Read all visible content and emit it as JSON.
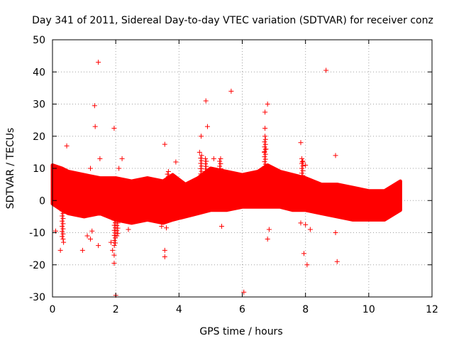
{
  "chart_data": {
    "type": "scatter",
    "title": "Day 341 of 2011, Sidereal Day-to-day VTEC variation (SDTVAR) for receiver conz",
    "xlabel": "GPS time / hours",
    "ylabel": "SDTVAR / TECUs",
    "xlim": [
      0,
      12
    ],
    "ylim": [
      -30,
      50
    ],
    "x_ticks": [
      "0",
      "2",
      "4",
      "6",
      "8",
      "10",
      "12"
    ],
    "y_ticks": [
      "-30",
      "-20",
      "-10",
      "0",
      "10",
      "20",
      "30",
      "40",
      "50"
    ],
    "grid": true,
    "marker": "+",
    "color": "#ff0000",
    "band": {
      "x": [
        0.0,
        0.3,
        0.5,
        1.0,
        1.5,
        2.0,
        2.5,
        3.0,
        3.5,
        3.8,
        4.2,
        4.6,
        5.0,
        5.5,
        6.0,
        6.5,
        6.8,
        7.2,
        7.6,
        8.0,
        8.5,
        9.0,
        9.5,
        10.0,
        10.5,
        11.0
      ],
      "upper": [
        11,
        10,
        9,
        8,
        7,
        7,
        6,
        7,
        6,
        8,
        5,
        7,
        10,
        9,
        8,
        9,
        11,
        9,
        8,
        7,
        5,
        5,
        4,
        3,
        3,
        6
      ],
      "lower": [
        -1,
        -3,
        -4,
        -5,
        -4,
        -6,
        -7,
        -6,
        -7,
        -6,
        -5,
        -4,
        -3,
        -3,
        -2,
        -2,
        -2,
        -2,
        -3,
        -3,
        -4,
        -5,
        -6,
        -6,
        -6,
        -3
      ]
    },
    "outliers": [
      {
        "x": 1.45,
        "y": 43
      },
      {
        "x": 8.65,
        "y": 40.5
      },
      {
        "x": 5.65,
        "y": 34
      },
      {
        "x": 4.85,
        "y": 31
      },
      {
        "x": 6.8,
        "y": 30
      },
      {
        "x": 1.33,
        "y": 29.5
      },
      {
        "x": 6.72,
        "y": 27.5
      },
      {
        "x": 4.9,
        "y": 23
      },
      {
        "x": 1.35,
        "y": 23
      },
      {
        "x": 1.95,
        "y": 22.5
      },
      {
        "x": 6.72,
        "y": 22.5
      },
      {
        "x": 4.7,
        "y": 20
      },
      {
        "x": 6.72,
        "y": 20
      },
      {
        "x": 7.85,
        "y": 18
      },
      {
        "x": 3.55,
        "y": 17.5
      },
      {
        "x": 0.45,
        "y": 17
      },
      {
        "x": 6.75,
        "y": 16
      },
      {
        "x": 4.65,
        "y": 15
      },
      {
        "x": 8.95,
        "y": 14
      },
      {
        "x": 6.7,
        "y": 15
      },
      {
        "x": 7.9,
        "y": 12
      },
      {
        "x": 1.5,
        "y": 13
      },
      {
        "x": 2.2,
        "y": 13
      },
      {
        "x": 5.1,
        "y": 13
      },
      {
        "x": 3.9,
        "y": 12
      },
      {
        "x": 8.0,
        "y": 11
      },
      {
        "x": 1.2,
        "y": 10
      },
      {
        "x": 2.1,
        "y": 10
      },
      {
        "x": 0.25,
        "y": -15.5
      },
      {
        "x": 0.95,
        "y": -15.5
      },
      {
        "x": 1.45,
        "y": -14
      },
      {
        "x": 3.55,
        "y": -15.5
      },
      {
        "x": 3.55,
        "y": -17.5
      },
      {
        "x": 1.95,
        "y": -19.5
      },
      {
        "x": 1.95,
        "y": -17
      },
      {
        "x": 2.0,
        "y": -29.5
      },
      {
        "x": 6.05,
        "y": -28.5
      },
      {
        "x": 7.95,
        "y": -16.5
      },
      {
        "x": 8.05,
        "y": -20
      },
      {
        "x": 9.0,
        "y": -19
      },
      {
        "x": 6.8,
        "y": -12
      },
      {
        "x": 6.85,
        "y": -9
      },
      {
        "x": 8.95,
        "y": -10
      },
      {
        "x": 5.35,
        "y": -8
      },
      {
        "x": 7.85,
        "y": -7
      },
      {
        "x": 8.0,
        "y": -7.5
      },
      {
        "x": 8.15,
        "y": -9
      },
      {
        "x": 1.2,
        "y": -12
      },
      {
        "x": 1.1,
        "y": -11
      },
      {
        "x": 1.25,
        "y": -9.5
      },
      {
        "x": 0.1,
        "y": -9.5
      },
      {
        "x": 0.35,
        "y": -13
      },
      {
        "x": 1.85,
        "y": -13
      },
      {
        "x": 1.9,
        "y": -15.5
      },
      {
        "x": 2.4,
        "y": -9
      },
      {
        "x": 3.45,
        "y": -8
      },
      {
        "x": 3.6,
        "y": -8.5
      }
    ],
    "spikes": [
      {
        "x": 0.32,
        "y_from": 0,
        "y_to": -12
      },
      {
        "x": 1.97,
        "y_from": -3,
        "y_to": -14
      },
      {
        "x": 2.05,
        "y_from": -3,
        "y_to": -11
      },
      {
        "x": 4.7,
        "y_from": 5,
        "y_to": 14
      },
      {
        "x": 4.85,
        "y_from": 5,
        "y_to": 13
      },
      {
        "x": 6.72,
        "y_from": 9,
        "y_to": 19
      },
      {
        "x": 7.9,
        "y_from": 7,
        "y_to": 13
      },
      {
        "x": 3.65,
        "y_from": 5,
        "y_to": 9
      },
      {
        "x": 5.3,
        "y_from": 6,
        "y_to": 13
      }
    ]
  }
}
